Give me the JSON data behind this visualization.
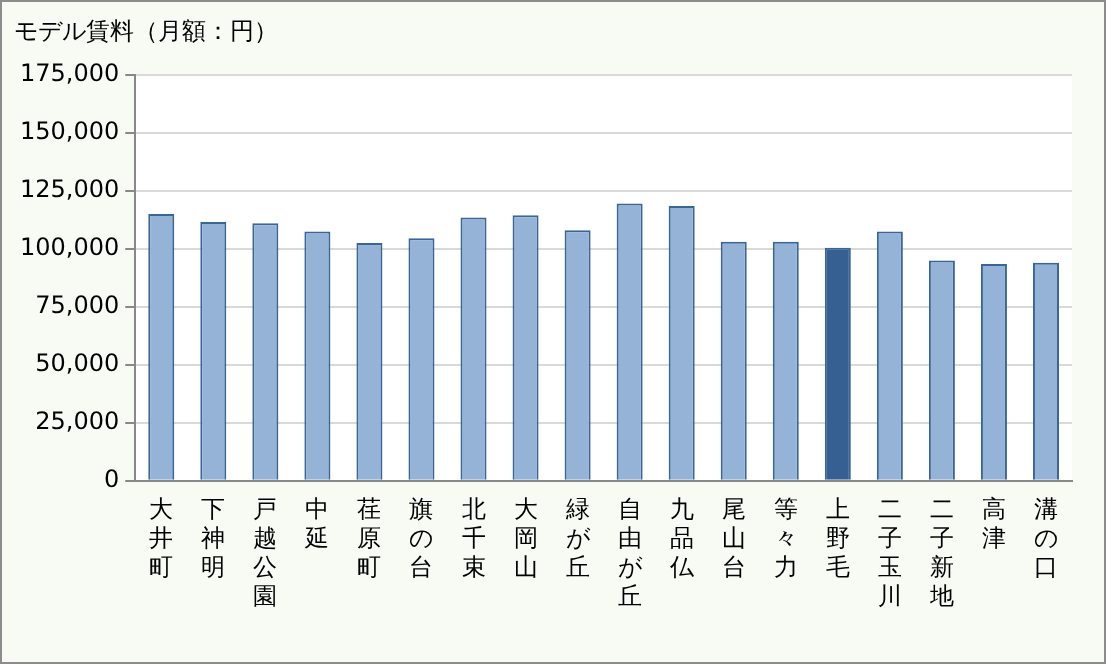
{
  "chart_data": {
    "type": "bar",
    "title": "モデル賃料（月額：円）",
    "categories": [
      "大井町",
      "下神明",
      "戸越公園",
      "中延",
      "荏原町",
      "旗の台",
      "北千束",
      "大岡山",
      "緑が丘",
      "自由が丘",
      "九品仏",
      "尾山台",
      "等々力",
      "上野毛",
      "二子玉川",
      "二子新地",
      "高津",
      "溝の口"
    ],
    "values": [
      115000,
      111500,
      111000,
      107500,
      102500,
      104500,
      113500,
      114500,
      108000,
      119500,
      118500,
      103000,
      103000,
      100500,
      107500,
      95000,
      93500,
      94000
    ],
    "colors": [
      "#95b3d7",
      "#95b3d7",
      "#95b3d7",
      "#95b3d7",
      "#95b3d7",
      "#95b3d7",
      "#95b3d7",
      "#95b3d7",
      "#95b3d7",
      "#95b3d7",
      "#95b3d7",
      "#95b3d7",
      "#95b3d7",
      "#376092",
      "#95b3d7",
      "#95b3d7",
      "#95b3d7",
      "#95b3d7"
    ],
    "ylim": [
      0,
      175000
    ],
    "yticks": [
      {
        "value": 0,
        "label": "0"
      },
      {
        "value": 25000,
        "label": "25,000"
      },
      {
        "value": 50000,
        "label": "50,000"
      },
      {
        "value": 75000,
        "label": "75,000"
      },
      {
        "value": 100000,
        "label": "100,000"
      },
      {
        "value": 125000,
        "label": "125,000"
      },
      {
        "value": 150000,
        "label": "150,000"
      },
      {
        "value": 175000,
        "label": "175,000"
      }
    ],
    "grid": "y",
    "legend": false
  }
}
